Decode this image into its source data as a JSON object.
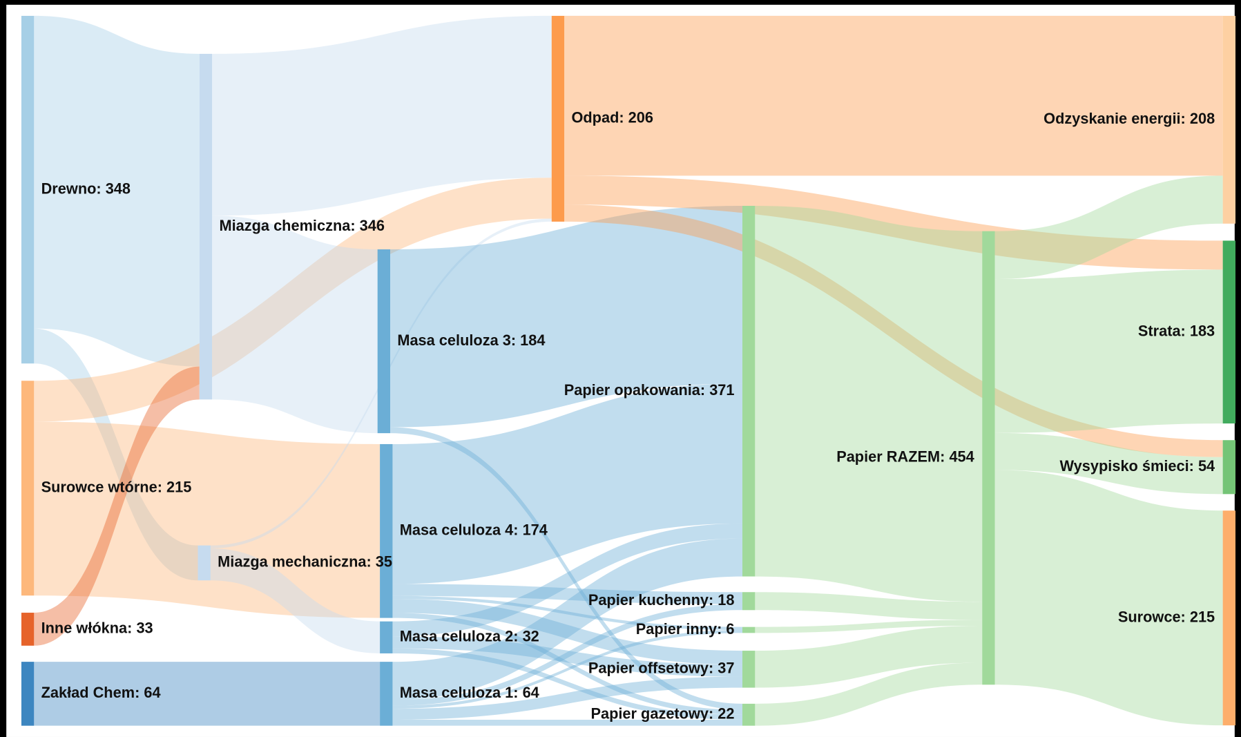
{
  "chart_data": {
    "type": "sankey",
    "nodes": [
      {
        "label": "Drewno: 348",
        "value": 348,
        "color": "#a6cfe6"
      },
      {
        "label": "Surowce wtórne: 215",
        "value": 215,
        "color": "#fdb87c"
      },
      {
        "label": "Inne włókna: 33",
        "value": 33,
        "color": "#e6632a"
      },
      {
        "label": "Zakład Chem: 64",
        "value": 64,
        "color": "#3d86c0"
      },
      {
        "label": "Miazga chemiczna: 346",
        "value": 346,
        "color": "#c6dbef"
      },
      {
        "label": "Miazga mechaniczna: 35",
        "value": 35,
        "color": "#c6dbef"
      },
      {
        "label": "Masa celuloza 3: 184",
        "value": 184,
        "color": "#6baed6"
      },
      {
        "label": "Masa celuloza 4: 174",
        "value": 174,
        "color": "#6baed6"
      },
      {
        "label": "Masa celuloza 2: 32",
        "value": 32,
        "color": "#6baed6"
      },
      {
        "label": "Masa celuloza 1: 64",
        "value": 64,
        "color": "#6baed6"
      },
      {
        "label": "Odpad: 206",
        "value": 206,
        "color": "#fd9b4c"
      },
      {
        "label": "Papier opakowania: 371",
        "value": 371,
        "color": "#a1d99b"
      },
      {
        "label": "Papier kuchenny: 18",
        "value": 18,
        "color": "#a1d99b"
      },
      {
        "label": "Papier inny: 6",
        "value": 6,
        "color": "#a1d99b"
      },
      {
        "label": "Papier offsetowy: 37",
        "value": 37,
        "color": "#a1d99b"
      },
      {
        "label": "Papier gazetowy: 22",
        "value": 22,
        "color": "#a1d99b"
      },
      {
        "label": "Papier RAZEM: 454",
        "value": 454,
        "color": "#a1d99b"
      },
      {
        "label": "Odzyskanie energii: 208",
        "value": 208,
        "color": "#fdd0a2"
      },
      {
        "label": "Strata: 183",
        "value": 183,
        "color": "#41ab5d"
      },
      {
        "label": "Wysypisko śmieci: 54",
        "value": 54,
        "color": "#74c476"
      },
      {
        "label": "Surowce: 215",
        "value": 215,
        "color": "#fdae6b"
      }
    ],
    "links": [
      {
        "source": 0,
        "target": 4,
        "value": 313
      },
      {
        "source": 0,
        "target": 5,
        "value": 35
      },
      {
        "source": 1,
        "target": 10,
        "value": 41
      },
      {
        "source": 1,
        "target": 7,
        "value": 174
      },
      {
        "source": 2,
        "target": 4,
        "value": 33
      },
      {
        "source": 3,
        "target": 9,
        "value": 64
      },
      {
        "source": 4,
        "target": 10,
        "value": 162
      },
      {
        "source": 4,
        "target": 6,
        "value": 184
      },
      {
        "source": 5,
        "target": 10,
        "value": 3
      },
      {
        "source": 5,
        "target": 8,
        "value": 32
      },
      {
        "source": 6,
        "target": 11,
        "value": 178
      },
      {
        "source": 6,
        "target": 15,
        "value": 6
      },
      {
        "source": 7,
        "target": 11,
        "value": 140
      },
      {
        "source": 7,
        "target": 12,
        "value": 12
      },
      {
        "source": 7,
        "target": 13,
        "value": 3
      },
      {
        "source": 7,
        "target": 14,
        "value": 14
      },
      {
        "source": 7,
        "target": 15,
        "value": 5
      },
      {
        "source": 8,
        "target": 11,
        "value": 15
      },
      {
        "source": 8,
        "target": 14,
        "value": 12
      },
      {
        "source": 8,
        "target": 15,
        "value": 5
      },
      {
        "source": 9,
        "target": 11,
        "value": 38
      },
      {
        "source": 9,
        "target": 12,
        "value": 6
      },
      {
        "source": 9,
        "target": 13,
        "value": 3
      },
      {
        "source": 9,
        "target": 14,
        "value": 11
      },
      {
        "source": 9,
        "target": 15,
        "value": 6
      },
      {
        "source": 10,
        "target": 17,
        "value": 160
      },
      {
        "source": 10,
        "target": 18,
        "value": 29
      },
      {
        "source": 10,
        "target": 19,
        "value": 17
      },
      {
        "source": 11,
        "target": 16,
        "value": 371
      },
      {
        "source": 12,
        "target": 16,
        "value": 18
      },
      {
        "source": 13,
        "target": 16,
        "value": 6
      },
      {
        "source": 14,
        "target": 16,
        "value": 37
      },
      {
        "source": 15,
        "target": 16,
        "value": 22
      },
      {
        "source": 16,
        "target": 17,
        "value": 48
      },
      {
        "source": 16,
        "target": 18,
        "value": 154
      },
      {
        "source": 16,
        "target": 19,
        "value": 37
      },
      {
        "source": 16,
        "target": 20,
        "value": 215
      }
    ]
  }
}
